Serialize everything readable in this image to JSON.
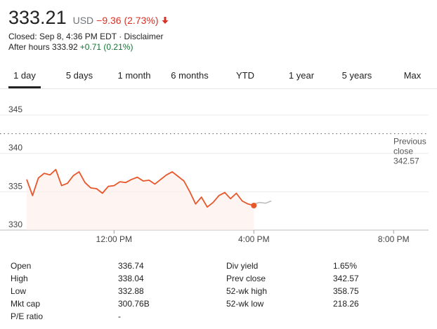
{
  "quote": {
    "price": "333.21",
    "currency": "USD",
    "change": "−9.36 (2.73%)",
    "change_color": "#d93025",
    "closed_line": "Closed: Sep 8, 4:36 PM EDT · Disclaimer",
    "after_hours_label": "After hours 333.92",
    "after_hours_change": "+0.71 (0.21%)",
    "after_hours_color": "#137333"
  },
  "tabs": [
    {
      "label": "1 day",
      "active": true
    },
    {
      "label": "5 days",
      "active": false
    },
    {
      "label": "1 month",
      "active": false
    },
    {
      "label": "6 months",
      "active": false
    },
    {
      "label": "YTD",
      "active": false
    },
    {
      "label": "1 year",
      "active": false
    },
    {
      "label": "5 years",
      "active": false
    },
    {
      "label": "Max",
      "active": false
    }
  ],
  "chart_data": {
    "type": "line",
    "y_ticks": [
      "345",
      "340",
      "335",
      "330"
    ],
    "x_ticks": [
      "12:00 PM",
      "4:00 PM",
      "8:00 PM"
    ],
    "ylim": [
      330,
      345
    ],
    "previous_close_label": [
      "Previous",
      "close",
      "342.57"
    ],
    "previous_close": 342.57,
    "line_color": "#e8572a",
    "after_hours_color": "#bdbdbd",
    "grid": true,
    "series": [
      {
        "x": [
          "9:30 AM",
          "9:40 AM",
          "9:50 AM",
          "10:00 AM",
          "10:10 AM",
          "10:20 AM",
          "10:30 AM",
          "10:40 AM",
          "10:50 AM",
          "11:00 AM",
          "11:10 AM",
          "11:20 AM",
          "11:30 AM",
          "11:40 AM",
          "11:50 AM",
          "12:00 PM",
          "12:10 PM",
          "12:20 PM",
          "12:30 PM",
          "12:40 PM",
          "12:50 PM",
          "1:00 PM",
          "1:10 PM",
          "1:20 PM",
          "1:30 PM",
          "1:40 PM",
          "1:50 PM",
          "2:00 PM",
          "2:10 PM",
          "2:20 PM",
          "2:30 PM",
          "2:40 PM",
          "2:50 PM",
          "3:00 PM",
          "3:10 PM",
          "3:20 PM",
          "3:30 PM",
          "3:40 PM",
          "3:50 PM",
          "4:00 PM"
        ],
        "y": [
          336.6,
          334.5,
          336.8,
          337.4,
          337.2,
          337.9,
          335.8,
          336.1,
          337.1,
          337.6,
          336.2,
          335.5,
          335.4,
          334.8,
          335.7,
          335.8,
          336.3,
          336.2,
          336.6,
          336.9,
          336.4,
          336.5,
          336.0,
          336.6,
          337.2,
          337.6,
          337.0,
          336.4,
          335.0,
          333.4,
          334.3,
          333.0,
          333.6,
          334.5,
          334.9,
          334.1,
          334.8,
          333.8,
          333.4,
          333.2
        ]
      },
      {
        "x": [
          "4:00 PM",
          "4:10 PM",
          "4:20 PM",
          "4:30 PM"
        ],
        "y": [
          333.4,
          333.6,
          333.5,
          333.8
        ]
      }
    ]
  },
  "stats": {
    "left": [
      {
        "label": "Open",
        "value": "336.74"
      },
      {
        "label": "High",
        "value": "338.04"
      },
      {
        "label": "Low",
        "value": "332.88"
      },
      {
        "label": "Mkt cap",
        "value": "300.76B"
      },
      {
        "label": "P/E ratio",
        "value": "-"
      }
    ],
    "right": [
      {
        "label": "Div yield",
        "value": "1.65%"
      },
      {
        "label": "Prev close",
        "value": "342.57"
      },
      {
        "label": "52-wk high",
        "value": "358.75"
      },
      {
        "label": "52-wk low",
        "value": "218.26"
      }
    ]
  }
}
